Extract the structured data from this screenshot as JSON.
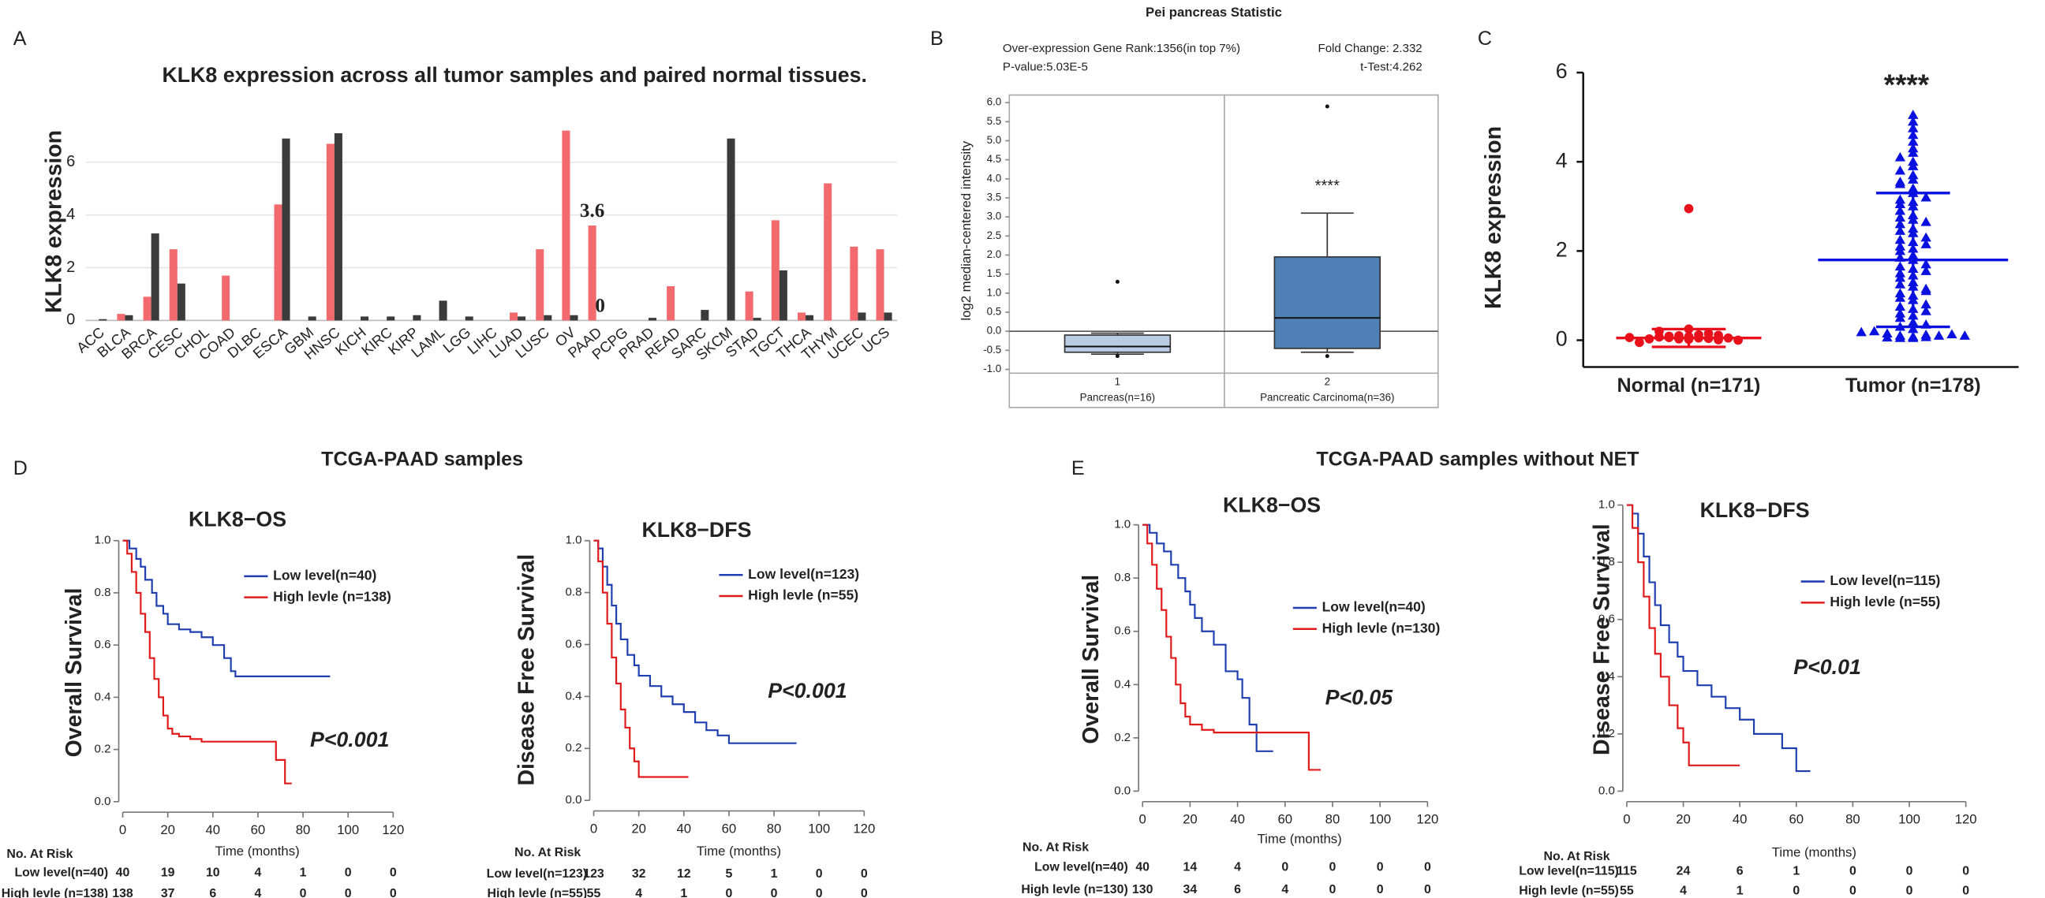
{
  "sections": [
    {
      "label": "D",
      "title": "TCGA-PAAD samples"
    },
    {
      "label": "E",
      "title": "TCGA-PAAD samples without NET"
    }
  ],
  "chart_data": [
    {
      "type": "bar",
      "panel": "A",
      "title": "KLK8 expression across all tumor samples and paired normal tissues.",
      "ylabel": "KLK8 expression",
      "categories": [
        "ACC",
        "BLCA",
        "BRCA",
        "CESC",
        "CHOL",
        "COAD",
        "DLBC",
        "ESCA",
        "GBM",
        "HNSC",
        "KICH",
        "KIRC",
        "KIRP",
        "LAML",
        "LGG",
        "LIHC",
        "LUAD",
        "LUSC",
        "OV",
        "PAAD",
        "PCPG",
        "PRAD",
        "READ",
        "SARC",
        "SKCM",
        "STAD",
        "TGCT",
        "THCA",
        "THYM",
        "UCEC",
        "UCS"
      ],
      "series": [
        {
          "color": "#f26a6e",
          "values": [
            null,
            0.25,
            0.9,
            2.7,
            null,
            1.7,
            null,
            4.4,
            null,
            6.7,
            null,
            null,
            null,
            null,
            null,
            null,
            0.3,
            2.7,
            7.2,
            3.6,
            null,
            null,
            1.3,
            null,
            null,
            1.1,
            3.8,
            0.3,
            5.2,
            2.8,
            2.7
          ],
          "value_labels": [
            null,
            null,
            null,
            null,
            null,
            null,
            null,
            null,
            null,
            null,
            null,
            null,
            null,
            null,
            null,
            null,
            null,
            null,
            null,
            "3.6",
            null,
            null,
            null,
            null,
            null,
            null,
            null,
            null,
            null,
            null,
            null
          ]
        },
        {
          "color": "#3b3b3b",
          "values": [
            0.05,
            0.2,
            3.3,
            1.4,
            null,
            null,
            null,
            6.9,
            0.15,
            7.1,
            0.15,
            0.15,
            0.2,
            0.75,
            0.15,
            null,
            0.15,
            0.2,
            0.2,
            0,
            null,
            0.1,
            null,
            0.4,
            6.9,
            0.1,
            1.9,
            0.2,
            null,
            0.3,
            0.3
          ],
          "value_labels": [
            null,
            null,
            null,
            null,
            null,
            null,
            null,
            null,
            null,
            null,
            null,
            null,
            null,
            null,
            null,
            null,
            null,
            null,
            null,
            "0",
            null,
            null,
            null,
            null,
            null,
            null,
            null,
            null,
            null,
            null,
            null
          ]
        }
      ],
      "ylim": [
        0,
        7.5
      ],
      "yticks": [
        0,
        2,
        4,
        6
      ],
      "grid": true
    },
    {
      "type": "box",
      "panel": "B",
      "title": "Pei pancreas Statistic",
      "info": [
        "Over-expression Gene Rank:1356(in top 7%)",
        "P-value:5.03E-5",
        "Fold Change: 2.332",
        "t-Test:4.262"
      ],
      "ylabel": "log2 median-centered intensity",
      "annotation": "****",
      "groups": [
        {
          "category": "1",
          "label": "Pancreas(n=16)",
          "color": "#b9cde5",
          "whisker_low": -0.6,
          "q1": -0.55,
          "median": -0.4,
          "q3": -0.1,
          "whisker_high": -0.05,
          "outliers": [
            1.3,
            -0.65
          ]
        },
        {
          "category": "2",
          "label": "Pancreatic Carcinoma(n=36)",
          "color": "#4f81b7",
          "whisker_low": -0.55,
          "q1": -0.45,
          "median": 0.35,
          "q3": 1.95,
          "whisker_high": 3.1,
          "outliers": [
            5.9,
            -0.65
          ]
        }
      ],
      "ylim": [
        -1.1,
        6.2
      ],
      "yticks": [
        {
          "value": -1,
          "label": "-1.0"
        },
        -0.5,
        {
          "value": 0,
          "label": "0.0"
        },
        0.5,
        {
          "value": 1,
          "label": "1.0"
        },
        1.5,
        {
          "value": 2,
          "label": "2.0"
        },
        2.5,
        {
          "value": 3,
          "label": "3.0"
        },
        3.5,
        {
          "value": 4,
          "label": "4.0"
        },
        4.5,
        {
          "value": 5,
          "label": "5.0"
        },
        5.5,
        {
          "value": 6,
          "label": "6.0"
        }
      ]
    },
    {
      "type": "dot",
      "panel": "C",
      "ylabel": "KLK8 expression",
      "annotation": "****",
      "groups": [
        {
          "category": "Normal (n=171)",
          "color": "#e8101a",
          "marker": "circle",
          "mean": 0.05,
          "sd": 0.2,
          "values": [
            0.02,
            0.03,
            0.05,
            0.06,
            0.08,
            0.1,
            0.12,
            0.04,
            0.07,
            0.09,
            0.15,
            0.2,
            0.25,
            0.01,
            0.03,
            0.05,
            0.11,
            -0.05,
            0.0,
            0.06,
            2.95
          ]
        },
        {
          "category": "Tumor (n=178)",
          "color": "#0a10e0",
          "marker": "triangle",
          "mean": 1.8,
          "sd": 1.5,
          "values": [
            0.05,
            0.08,
            0.1,
            0.12,
            0.15,
            0.05,
            0.1,
            0.2,
            0.07,
            0.13,
            0.18,
            0.1,
            0.06,
            0.25,
            0.3,
            0.35,
            0.4,
            0.5,
            0.55,
            0.6,
            0.7,
            0.75,
            0.8,
            0.9,
            1.0,
            1.05,
            1.1,
            1.2,
            1.25,
            1.3,
            1.4,
            1.45,
            1.5,
            1.6,
            1.65,
            1.7,
            1.8,
            1.85,
            1.9,
            2.0,
            2.05,
            2.1,
            2.2,
            2.25,
            2.3,
            2.4,
            2.45,
            2.5,
            2.6,
            2.7,
            2.75,
            2.8,
            2.9,
            3.0,
            3.1,
            3.15,
            3.2,
            3.3,
            3.4,
            3.5,
            3.6,
            3.7,
            3.8,
            3.9,
            4.0,
            4.1,
            4.2,
            4.3,
            4.45,
            4.6,
            4.75,
            4.9,
            5.05,
            1.15,
            1.55,
            2.15,
            2.65,
            0.65,
            0.95,
            3.05,
            3.55
          ]
        }
      ],
      "ylim": [
        -0.6,
        6
      ],
      "yticks": [
        0,
        2,
        4,
        6
      ]
    },
    {
      "type": "step",
      "title": "KLK8−OS",
      "xlabel": "Time (months)",
      "ylabel": "Overall Survival",
      "annotation": "P<0.001",
      "xlim": [
        0,
        120
      ],
      "xticks": [
        0,
        20,
        40,
        60,
        80,
        100,
        120
      ],
      "ylim": [
        0,
        1
      ],
      "yticks": [
        {
          "value": 0,
          "label": "0.0"
        },
        0.2,
        0.4,
        0.6,
        0.8,
        {
          "value": 1,
          "label": "1.0"
        }
      ],
      "series": [
        {
          "name": "Low level(n=40)",
          "color": "#1f3fb0",
          "x": [
            0,
            3,
            6,
            8,
            10,
            13,
            15,
            18,
            20,
            25,
            30,
            35,
            40,
            45,
            48,
            50,
            92
          ],
          "values": [
            1,
            0.97,
            0.93,
            0.9,
            0.85,
            0.8,
            0.75,
            0.72,
            0.68,
            0.66,
            0.65,
            0.63,
            0.6,
            0.55,
            0.5,
            0.48,
            0.48
          ]
        },
        {
          "name": "High levle (n=138)",
          "color": "#e01a1a",
          "x": [
            0,
            2,
            4,
            6,
            8,
            10,
            12,
            14,
            16,
            18,
            20,
            22,
            25,
            30,
            35,
            40,
            50,
            60,
            68,
            72,
            75
          ],
          "values": [
            1,
            0.95,
            0.88,
            0.8,
            0.72,
            0.65,
            0.55,
            0.47,
            0.4,
            0.33,
            0.28,
            0.26,
            0.25,
            0.24,
            0.23,
            0.23,
            0.23,
            0.23,
            0.16,
            0.07,
            0.07
          ]
        }
      ],
      "risk_table": {
        "title": "No. At Risk",
        "rows": [
          {
            "label": "Low level(n=40)",
            "values": [
              40,
              19,
              10,
              4,
              1,
              0,
              0
            ]
          },
          {
            "label": "High levle (n=138)",
            "values": [
              138,
              37,
              6,
              4,
              0,
              0,
              0
            ]
          }
        ]
      }
    },
    {
      "type": "step",
      "title": "KLK8−DFS",
      "xlabel": "Time (months)",
      "ylabel": "Disease Free Survival",
      "annotation": "P<0.001",
      "xlim": [
        0,
        120
      ],
      "xticks": [
        0,
        20,
        40,
        60,
        80,
        100,
        120
      ],
      "ylim": [
        0,
        1
      ],
      "yticks": [
        {
          "value": 0,
          "label": "0.0"
        },
        0.2,
        0.4,
        0.6,
        0.8,
        {
          "value": 1,
          "label": "1.0"
        }
      ],
      "series": [
        {
          "name": "Low level(n=123)",
          "color": "#1f3fb0",
          "x": [
            0,
            2,
            4,
            6,
            8,
            10,
            12,
            15,
            18,
            20,
            25,
            30,
            35,
            40,
            45,
            50,
            55,
            60,
            65,
            90
          ],
          "values": [
            1,
            0.97,
            0.9,
            0.83,
            0.75,
            0.68,
            0.62,
            0.56,
            0.52,
            0.48,
            0.44,
            0.4,
            0.37,
            0.34,
            0.3,
            0.27,
            0.25,
            0.22,
            0.22,
            0.22
          ]
        },
        {
          "name": "High levle (n=55)",
          "color": "#e01a1a",
          "x": [
            0,
            2,
            4,
            6,
            8,
            10,
            12,
            14,
            16,
            18,
            20,
            25,
            42
          ],
          "values": [
            1,
            0.92,
            0.8,
            0.68,
            0.55,
            0.45,
            0.35,
            0.28,
            0.2,
            0.15,
            0.09,
            0.09,
            0.09
          ]
        }
      ],
      "risk_table": {
        "title": "No. At Risk",
        "rows": [
          {
            "label": "Low level(n=123)",
            "values": [
              123,
              32,
              12,
              5,
              1,
              0,
              0
            ]
          },
          {
            "label": "High levle (n=55)",
            "values": [
              55,
              4,
              1,
              0,
              0,
              0,
              0
            ]
          }
        ]
      }
    },
    {
      "type": "step",
      "title": "KLK8−OS",
      "xlabel": "Time (months)",
      "ylabel": "Overall Survival",
      "annotation": "P<0.05",
      "xlim": [
        0,
        120
      ],
      "xticks": [
        0,
        20,
        40,
        60,
        80,
        100,
        120
      ],
      "ylim": [
        0,
        1
      ],
      "yticks": [
        {
          "value": 0,
          "label": "0.0"
        },
        0.2,
        0.4,
        0.6,
        0.8,
        {
          "value": 1,
          "label": "1.0"
        }
      ],
      "series": [
        {
          "name": "Low level(n=40)",
          "color": "#1f3fb0",
          "x": [
            0,
            3,
            6,
            9,
            12,
            15,
            18,
            20,
            22,
            25,
            30,
            35,
            40,
            42,
            45,
            48,
            50,
            55
          ],
          "values": [
            1,
            0.97,
            0.93,
            0.9,
            0.85,
            0.8,
            0.75,
            0.7,
            0.65,
            0.6,
            0.55,
            0.45,
            0.42,
            0.35,
            0.25,
            0.15,
            0.15,
            0.15
          ]
        },
        {
          "name": "High levle (n=130)",
          "color": "#e01a1a",
          "x": [
            0,
            2,
            4,
            6,
            8,
            10,
            12,
            14,
            16,
            18,
            20,
            25,
            30,
            40,
            50,
            65,
            70,
            75
          ],
          "values": [
            1,
            0.93,
            0.85,
            0.76,
            0.68,
            0.58,
            0.5,
            0.4,
            0.33,
            0.28,
            0.25,
            0.23,
            0.22,
            0.22,
            0.22,
            0.22,
            0.08,
            0.08
          ]
        }
      ],
      "risk_table": {
        "title": "No. At Risk",
        "rows": [
          {
            "label": "Low level(n=40)",
            "values": [
              40,
              14,
              4,
              0,
              0,
              0,
              0
            ]
          },
          {
            "label": "High levle (n=130)",
            "values": [
              130,
              34,
              6,
              4,
              0,
              0,
              0
            ]
          }
        ]
      }
    },
    {
      "type": "step",
      "title": "KLK8−DFS",
      "xlabel": "Time (months)",
      "ylabel": "Disease Free Survival",
      "annotation": "P<0.01",
      "xlim": [
        0,
        120
      ],
      "xticks": [
        0,
        20,
        40,
        60,
        80,
        100,
        120
      ],
      "ylim": [
        0,
        1
      ],
      "yticks": [
        {
          "value": 0,
          "label": "0.0"
        },
        0.2,
        0.4,
        0.6,
        0.8,
        {
          "value": 1,
          "label": "1.0"
        }
      ],
      "series": [
        {
          "name": "Low level(n=115)",
          "color": "#1f3fb0",
          "x": [
            0,
            2,
            4,
            6,
            8,
            10,
            12,
            15,
            18,
            20,
            25,
            30,
            35,
            40,
            45,
            55,
            60,
            65
          ],
          "values": [
            1,
            0.97,
            0.9,
            0.82,
            0.73,
            0.65,
            0.58,
            0.52,
            0.47,
            0.42,
            0.37,
            0.33,
            0.29,
            0.25,
            0.2,
            0.15,
            0.07,
            0.07
          ]
        },
        {
          "name": "High levle (n=55)",
          "color": "#e01a1a",
          "x": [
            0,
            2,
            4,
            6,
            8,
            10,
            12,
            15,
            18,
            20,
            22,
            25,
            40
          ],
          "values": [
            1,
            0.92,
            0.8,
            0.68,
            0.57,
            0.48,
            0.4,
            0.3,
            0.22,
            0.17,
            0.09,
            0.09,
            0.09
          ]
        }
      ],
      "risk_table": {
        "title": "No. At Risk",
        "rows": [
          {
            "label": "Low level(n=115)",
            "values": [
              115,
              24,
              6,
              1,
              0,
              0,
              0
            ]
          },
          {
            "label": "High levle (n=55)",
            "values": [
              55,
              4,
              1,
              0,
              0,
              0,
              0
            ]
          }
        ]
      }
    }
  ]
}
